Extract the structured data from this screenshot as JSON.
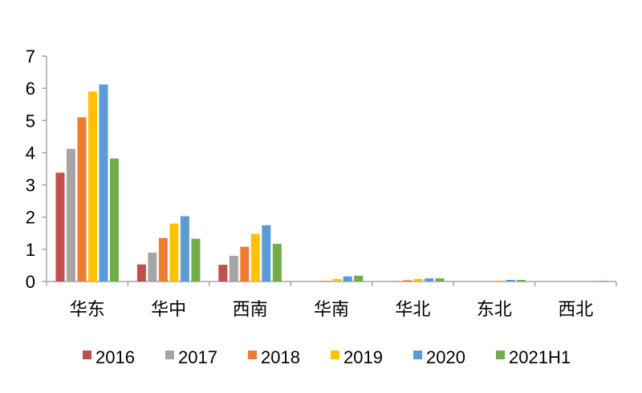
{
  "chart_data": {
    "type": "bar",
    "categories": [
      "华东",
      "华中",
      "西南",
      "华南",
      "华北",
      "东北",
      "西北"
    ],
    "series": [
      {
        "name": "2016",
        "color": "#C0504D",
        "values": [
          3.38,
          0.53,
          0.52,
          0.0,
          0.0,
          0.0,
          0.0
        ]
      },
      {
        "name": "2017",
        "color": "#A5A5A5",
        "values": [
          4.12,
          0.9,
          0.8,
          0.0,
          0.02,
          0.0,
          0.0
        ]
      },
      {
        "name": "2018",
        "color": "#ED7D31",
        "values": [
          5.1,
          1.35,
          1.08,
          0.02,
          0.04,
          0.0,
          0.0
        ]
      },
      {
        "name": "2019",
        "color": "#FFC000",
        "values": [
          5.9,
          1.8,
          1.48,
          0.08,
          0.08,
          0.03,
          0.0
        ]
      },
      {
        "name": "2020",
        "color": "#5B9BD5",
        "values": [
          6.12,
          2.03,
          1.75,
          0.16,
          0.1,
          0.05,
          0.01
        ]
      },
      {
        "name": "2021H1",
        "color": "#70AD47",
        "values": [
          3.82,
          1.33,
          1.17,
          0.18,
          0.1,
          0.05,
          0.02
        ]
      }
    ],
    "y_ticks": [
      "0",
      "1",
      "2",
      "3",
      "4",
      "5",
      "6",
      "7"
    ],
    "ylim": [
      0,
      7
    ],
    "grid": false,
    "legend_position": "bottom"
  }
}
